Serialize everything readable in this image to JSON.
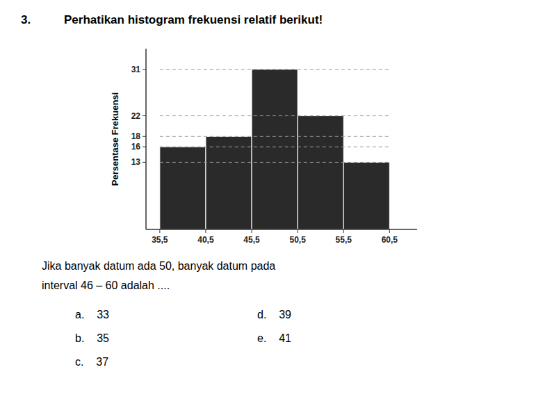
{
  "chart_data": {
    "type": "histogram",
    "title": "Perhatikan histogram frekuensi relatif berikut!",
    "y_label": "Persentase Frekuensi",
    "bins": [
      35.5,
      40.5,
      45.5,
      50.5,
      55.5,
      60.5
    ],
    "values": [
      16,
      18,
      31,
      22,
      13
    ],
    "color": "#2a2a2a",
    "xlim": [
      34.0,
      63.5
    ],
    "xticks": [
      {
        "value": 35.5,
        "label": "35,5"
      },
      {
        "value": 40.5,
        "label": "40,5"
      },
      {
        "value": 45.5,
        "label": "45,5"
      },
      {
        "value": 50.5,
        "label": "50,5"
      },
      {
        "value": 55.5,
        "label": "55,5"
      },
      {
        "value": 60.5,
        "label": "60,5"
      }
    ],
    "ylim": [
      0,
      35
    ],
    "yticks": [
      13,
      16,
      18,
      22,
      31
    ],
    "grid": true,
    "annotations": [
      "3.",
      "Jika banyak datum ada 50, banyak datum pada",
      "interval 46 – 60 adalah ....",
      "a.    33",
      "b.    35",
      "c.    37",
      "d.    39",
      "e.    41"
    ]
  }
}
